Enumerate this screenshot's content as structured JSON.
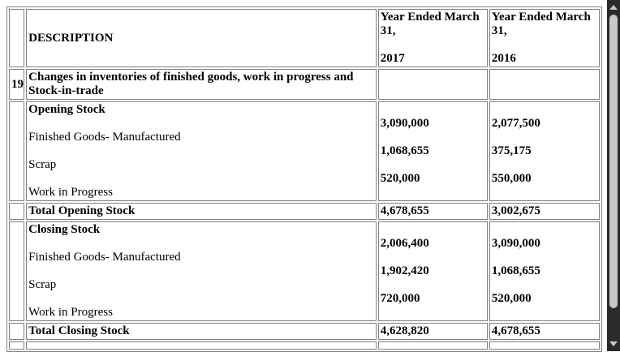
{
  "header": {
    "description": "DESCRIPTION",
    "col1_line1": "Year Ended March 31,",
    "col1_line2": "2017",
    "col2_line1": "Year Ended March 31,",
    "col2_line2": "2016"
  },
  "section": {
    "number": "19",
    "title": "Changes in inventories of finished goods, work in progress and Stock-in-trade"
  },
  "opening": {
    "heading": "Opening Stock",
    "items": [
      "Finished Goods- Manufactured",
      "Scrap",
      "Work in Progress"
    ],
    "values_2017": [
      "3,090,000",
      "1,068,655",
      "520,000"
    ],
    "values_2016": [
      "2,077,500",
      "375,175",
      "550,000"
    ],
    "total_label": "Total Opening Stock",
    "total_2017": "4,678,655",
    "total_2016": "3,002,675"
  },
  "closing": {
    "heading": "Closing Stock",
    "items": [
      "Finished Goods- Manufactured",
      "Scrap",
      "Work in Progress"
    ],
    "values_2017": [
      "2,006,400",
      "1,902,420",
      "720,000"
    ],
    "values_2016": [
      "3,090,000",
      "1,068,655",
      "520,000"
    ],
    "total_label": "Total Closing Stock",
    "total_2017": "4,628,820",
    "total_2016": "4,678,655"
  }
}
